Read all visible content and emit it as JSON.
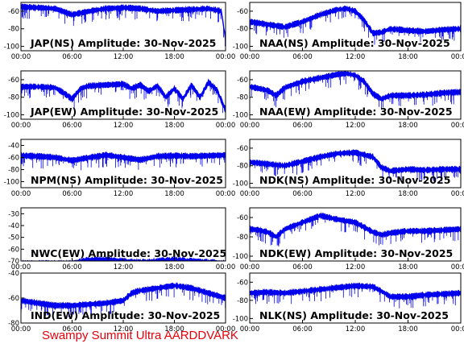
{
  "footer": "Swampy Summit Ultra AARDDVARK",
  "colors": {
    "trace": "#0000ee",
    "footer": "#e8000b",
    "axis": "#000000"
  },
  "chart_data": [
    {
      "type": "line",
      "title": "JAP(NS) Amplitude: 30-Nov-2025",
      "x_ticks": [
        "00:00",
        "06:00",
        "12:00",
        "18:00",
        "00:00"
      ],
      "ylim": [
        -105,
        -50
      ],
      "yticks": [
        "-60",
        "-80",
        "-100"
      ],
      "series": [
        {
          "x": [
            0,
            2,
            4,
            6,
            8,
            10,
            12,
            14,
            16,
            18,
            20,
            22,
            23.5,
            24
          ],
          "y": [
            -55,
            -56,
            -57,
            -64,
            -60,
            -57,
            -56,
            -57,
            -60,
            -59,
            -58,
            -57,
            -60,
            -92
          ]
        }
      ]
    },
    {
      "type": "line",
      "title": "NAA(NS) Amplitude: 30-Nov-2025",
      "x_ticks": [
        "00:00",
        "06:00",
        "12:00",
        "18:00",
        "00:00"
      ],
      "ylim": [
        -105,
        -50
      ],
      "yticks": [
        "-60",
        "-80",
        "-100"
      ],
      "series": [
        {
          "x": [
            0,
            2,
            4,
            6,
            8,
            10,
            11,
            12,
            13,
            14,
            15,
            16,
            18,
            20,
            22,
            24
          ],
          "y": [
            -72,
            -75,
            -78,
            -72,
            -64,
            -58,
            -57,
            -60,
            -70,
            -85,
            -84,
            -80,
            -82,
            -83,
            -81,
            -80
          ]
        }
      ]
    },
    {
      "type": "line",
      "title": "JAP(EW) Amplitude: 30-Nov-2025",
      "x_ticks": [
        "00:00",
        "06:00",
        "12:00",
        "18:00",
        "00:00"
      ],
      "ylim": [
        -105,
        -50
      ],
      "yticks": [
        "-60",
        "-80",
        "-100"
      ],
      "series": [
        {
          "x": [
            0,
            2,
            4,
            5,
            6,
            7,
            8,
            10,
            12,
            13,
            14,
            15,
            16,
            17,
            18,
            19,
            20,
            21,
            22,
            23,
            24
          ],
          "y": [
            -68,
            -68,
            -69,
            -75,
            -82,
            -70,
            -67,
            -66,
            -65,
            -70,
            -66,
            -73,
            -67,
            -80,
            -70,
            -82,
            -66,
            -80,
            -63,
            -72,
            -95
          ]
        }
      ]
    },
    {
      "type": "line",
      "title": "NAA(EW) Amplitude: 30-Nov-2025",
      "x_ticks": [
        "00:00",
        "06:00",
        "12:00",
        "18:00",
        "00:00"
      ],
      "ylim": [
        -105,
        -50
      ],
      "yticks": [
        "-60",
        "-80",
        "-100"
      ],
      "series": [
        {
          "x": [
            0,
            1,
            2,
            3,
            4,
            6,
            8,
            10,
            11,
            12,
            13,
            14,
            15,
            16,
            18,
            20,
            22,
            24
          ],
          "y": [
            -68,
            -70,
            -72,
            -78,
            -69,
            -62,
            -58,
            -54,
            -53,
            -55,
            -62,
            -76,
            -82,
            -78,
            -78,
            -77,
            -75,
            -74
          ]
        }
      ]
    },
    {
      "type": "line",
      "title": "NPM(NS) Amplitude: 30-Nov-2025",
      "x_ticks": [
        "00:00",
        "06:00",
        "12:00",
        "18:00",
        "00:00"
      ],
      "ylim": [
        -110,
        -30
      ],
      "yticks": [
        "-40",
        "-60",
        "-80",
        "-100"
      ],
      "series": [
        {
          "x": [
            0,
            2,
            4,
            6,
            8,
            10,
            12,
            14,
            16,
            18,
            20,
            22,
            24
          ],
          "y": [
            -57,
            -58,
            -60,
            -65,
            -60,
            -56,
            -60,
            -64,
            -58,
            -57,
            -58,
            -57,
            -56
          ]
        }
      ]
    },
    {
      "type": "line",
      "title": "NDK(NS) Amplitude: 30-Nov-2025",
      "x_ticks": [
        "00:00",
        "06:00",
        "12:00",
        "18:00",
        "00:00"
      ],
      "ylim": [
        -105,
        -50
      ],
      "yticks": [
        "-60",
        "-80",
        "-100"
      ],
      "series": [
        {
          "x": [
            0,
            2,
            4,
            6,
            8,
            10,
            12,
            14,
            15,
            16,
            18,
            20,
            22,
            24
          ],
          "y": [
            -76,
            -78,
            -80,
            -75,
            -70,
            -66,
            -65,
            -70,
            -82,
            -86,
            -84,
            -85,
            -84,
            -84
          ]
        }
      ]
    },
    {
      "type": "line",
      "title": "NWC(EW) Amplitude: 30-Nov-2025",
      "x_ticks": [
        "00:00",
        "06:00",
        "12:00",
        "18:00",
        "00:00"
      ],
      "ylim": [
        -70,
        -25
      ],
      "yticks": [
        "-30",
        "-40",
        "-50",
        "-60",
        "-70"
      ],
      "series": [
        {
          "x": [
            0,
            2,
            4,
            6,
            8,
            10,
            12,
            14,
            16,
            18,
            20,
            22,
            24
          ],
          "y": [
            -72,
            -72,
            -72,
            -72,
            -69,
            -69,
            -70,
            -71,
            -70,
            -69,
            -70,
            -71,
            -72
          ]
        }
      ]
    },
    {
      "type": "line",
      "title": "NDK(EW) Amplitude: 30-Nov-2025",
      "x_ticks": [
        "00:00",
        "06:00",
        "12:00",
        "18:00",
        "00:00"
      ],
      "ylim": [
        -105,
        -50
      ],
      "yticks": [
        "-60",
        "-80",
        "-100"
      ],
      "series": [
        {
          "x": [
            0,
            1,
            2,
            3,
            4,
            6,
            8,
            10,
            12,
            13,
            14,
            15,
            16,
            18,
            20,
            22,
            24
          ],
          "y": [
            -72,
            -73,
            -75,
            -80,
            -72,
            -65,
            -58,
            -62,
            -65,
            -70,
            -75,
            -78,
            -76,
            -74,
            -74,
            -73,
            -72
          ]
        }
      ]
    },
    {
      "type": "line",
      "title": "IND(EW) Amplitude: 30-Nov-2025",
      "x_ticks": [
        "00:00",
        "06:00",
        "12:00",
        "18:00",
        "00:00"
      ],
      "ylim": [
        -80,
        -40
      ],
      "yticks": [
        "-40",
        "-60",
        "-80"
      ],
      "series": [
        {
          "x": [
            0,
            2,
            4,
            6,
            8,
            10,
            12,
            13,
            14,
            15,
            16,
            18,
            20,
            22,
            24
          ],
          "y": [
            -62,
            -64,
            -66,
            -66,
            -65,
            -64,
            -62,
            -56,
            -54,
            -53,
            -52,
            -50,
            -52,
            -56,
            -60
          ]
        }
      ]
    },
    {
      "type": "line",
      "title": "NLK(NS) Amplitude: 30-Nov-2025",
      "x_ticks": [
        "00:00",
        "06:00",
        "12:00",
        "18:00",
        "00:00"
      ],
      "ylim": [
        -105,
        -50
      ],
      "yticks": [
        "-60",
        "-80",
        "-100"
      ],
      "series": [
        {
          "x": [
            0,
            2,
            4,
            6,
            8,
            10,
            12,
            14,
            15,
            16,
            18,
            20,
            22,
            24
          ],
          "y": [
            -72,
            -71,
            -72,
            -70,
            -68,
            -66,
            -64,
            -65,
            -70,
            -76,
            -76,
            -74,
            -73,
            -72
          ]
        }
      ]
    }
  ]
}
